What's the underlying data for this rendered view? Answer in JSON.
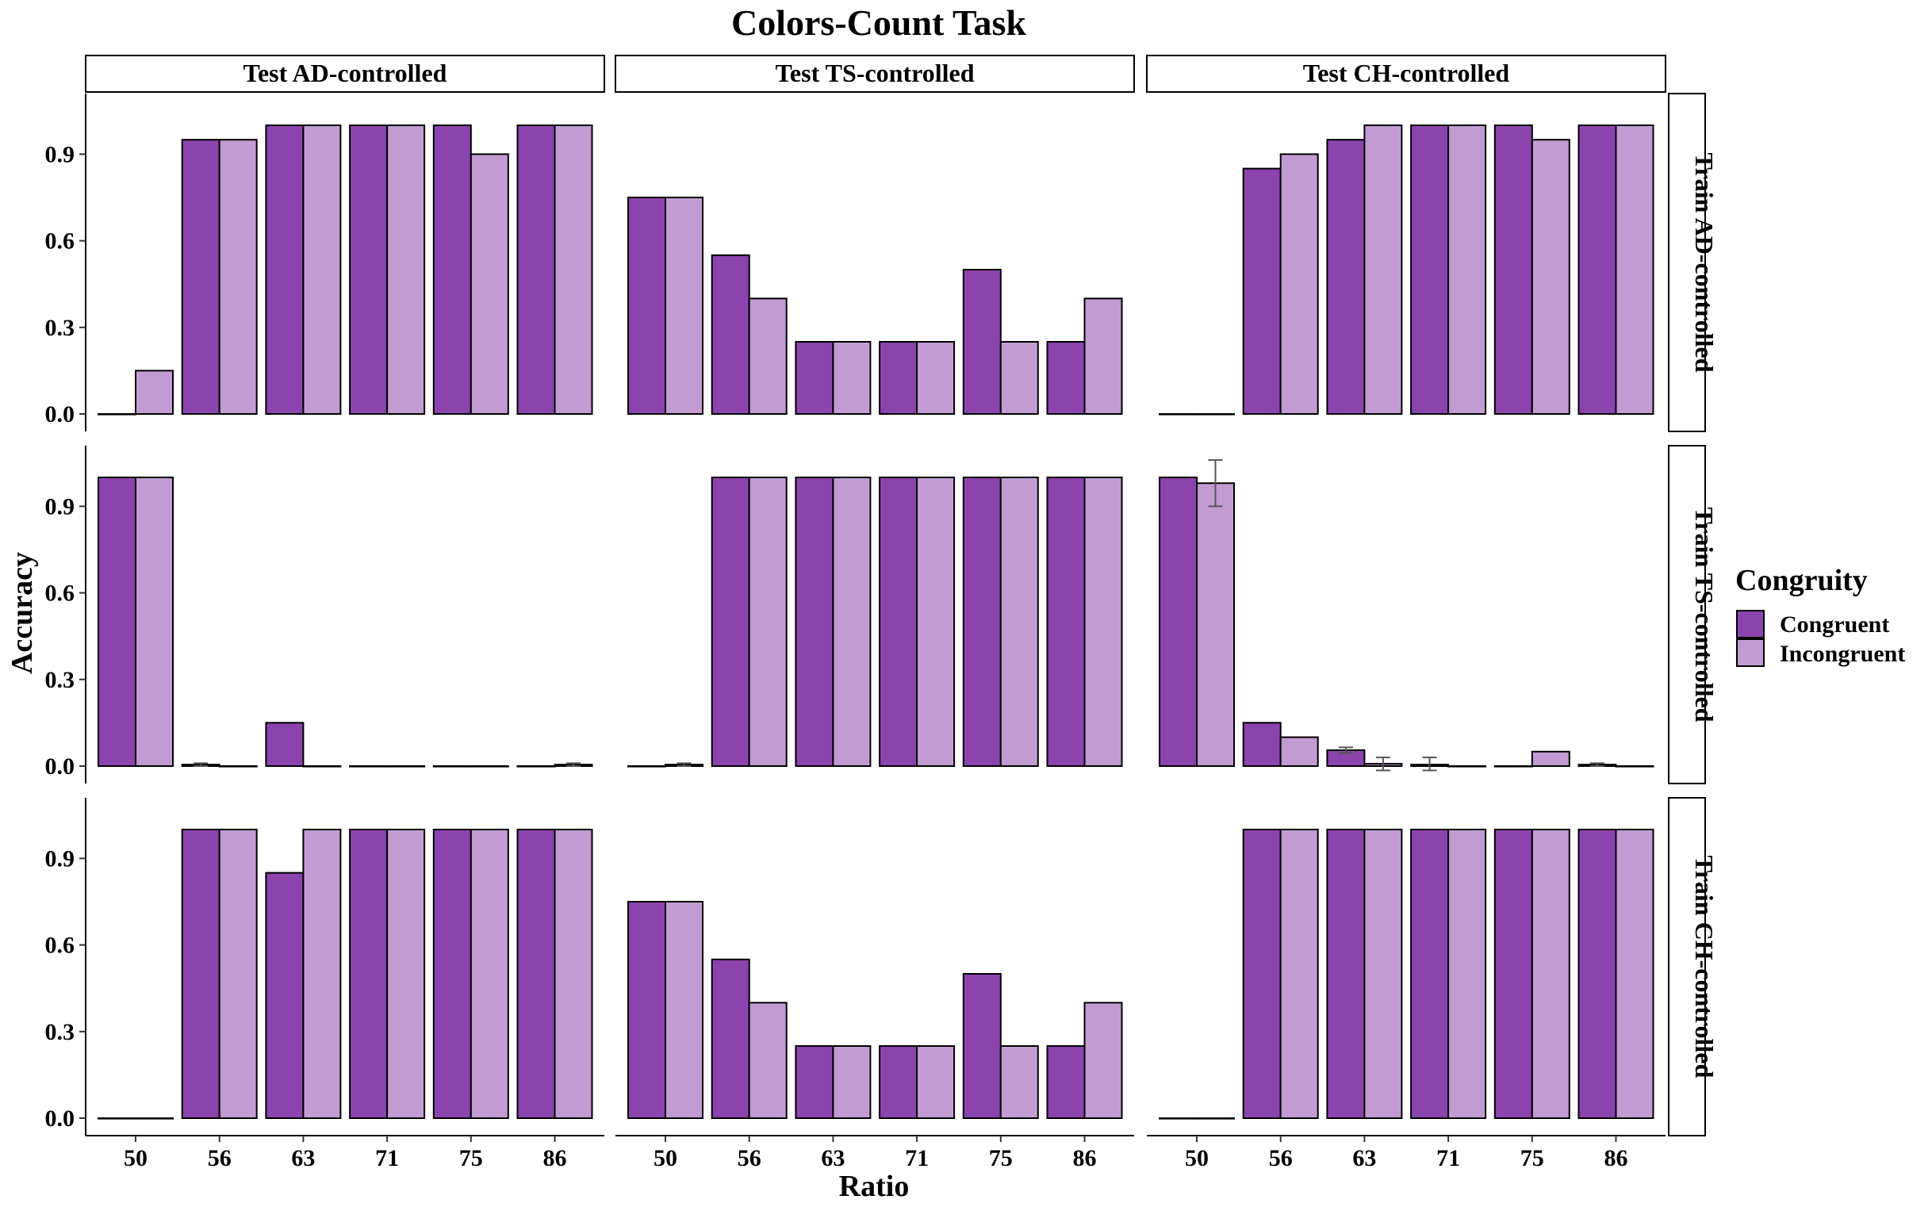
{
  "chart_data": {
    "type": "bar",
    "title": "Colors-Count Task",
    "xlabel": "Ratio",
    "ylabel": "Accuracy",
    "categories": [
      "50",
      "56",
      "63",
      "71",
      "75",
      "86"
    ],
    "ylim": [
      0,
      1.0
    ],
    "yticks": [
      "0.0",
      "0.3",
      "0.6",
      "0.9"
    ],
    "grid": false,
    "legend": {
      "title": "Congruity",
      "position": "right",
      "entries": [
        "Congruent",
        "Incongruent"
      ]
    },
    "colors": {
      "Congruent": "#8b44ad",
      "Incongruent": "#c39bd3"
    },
    "columns": [
      "Test AD-controlled",
      "Test TS-controlled",
      "Test CH-controlled"
    ],
    "rows": [
      "Train AD-controlled",
      "Train TS-controlled",
      "Train CH-controlled"
    ],
    "panels": [
      [
        {
          "series": [
            {
              "name": "Congruent",
              "values": [
                0.0,
                0.95,
                1.0,
                1.0,
                1.0,
                1.0
              ]
            },
            {
              "name": "Incongruent",
              "values": [
                0.15,
                0.95,
                1.0,
                1.0,
                0.9,
                1.0
              ]
            }
          ]
        },
        {
          "series": [
            {
              "name": "Congruent",
              "values": [
                0.75,
                0.55,
                0.25,
                0.25,
                0.5,
                0.25
              ]
            },
            {
              "name": "Incongruent",
              "values": [
                0.75,
                0.4,
                0.25,
                0.25,
                0.25,
                0.4
              ]
            }
          ]
        },
        {
          "series": [
            {
              "name": "Congruent",
              "values": [
                0.0,
                0.85,
                0.95,
                1.0,
                1.0,
                1.0
              ]
            },
            {
              "name": "Incongruent",
              "values": [
                0.0,
                0.9,
                1.0,
                1.0,
                0.95,
                1.0
              ]
            }
          ]
        }
      ],
      [
        {
          "series": [
            {
              "name": "Congruent",
              "values": [
                1.0,
                0.005,
                0.15,
                0.0,
                0.0,
                0.0
              ]
            },
            {
              "name": "Incongruent",
              "values": [
                1.0,
                0.0,
                0.0,
                0.0,
                0.0,
                0.005
              ]
            }
          ]
        },
        {
          "series": [
            {
              "name": "Congruent",
              "values": [
                0.0,
                1.0,
                1.0,
                1.0,
                1.0,
                1.0
              ]
            },
            {
              "name": "Incongruent",
              "values": [
                0.005,
                1.0,
                1.0,
                1.0,
                1.0,
                1.0
              ]
            }
          ]
        },
        {
          "series": [
            {
              "name": "Congruent",
              "values": [
                1.0,
                0.15,
                0.055,
                0.005,
                0.0,
                0.005
              ]
            },
            {
              "name": "Incongruent",
              "values": [
                0.98,
                0.1,
                0.008,
                0.0,
                0.05,
                0.0
              ]
            }
          ]
        }
      ],
      [
        {
          "series": [
            {
              "name": "Congruent",
              "values": [
                0.0,
                1.0,
                0.85,
                1.0,
                1.0,
                1.0
              ]
            },
            {
              "name": "Incongruent",
              "values": [
                0.0,
                1.0,
                1.0,
                1.0,
                1.0,
                1.0
              ]
            }
          ]
        },
        {
          "series": [
            {
              "name": "Congruent",
              "values": [
                0.75,
                0.55,
                0.25,
                0.25,
                0.5,
                0.25
              ]
            },
            {
              "name": "Incongruent",
              "values": [
                0.75,
                0.4,
                0.25,
                0.25,
                0.25,
                0.4
              ]
            }
          ]
        },
        {
          "series": [
            {
              "name": "Congruent",
              "values": [
                0.0,
                1.0,
                1.0,
                1.0,
                1.0,
                1.0
              ]
            },
            {
              "name": "Incongruent",
              "values": [
                0.0,
                1.0,
                1.0,
                1.0,
                1.0,
                1.0
              ]
            }
          ]
        }
      ]
    ],
    "error_bars": [
      {
        "row": 1,
        "col": 0,
        "series": "Congruent",
        "category": "56",
        "low": 0.0,
        "high": 0.01
      },
      {
        "row": 1,
        "col": 0,
        "series": "Incongruent",
        "category": "86",
        "low": 0.0,
        "high": 0.01
      },
      {
        "row": 1,
        "col": 1,
        "series": "Incongruent",
        "category": "50",
        "low": 0.0,
        "high": 0.01
      },
      {
        "row": 1,
        "col": 2,
        "series": "Incongruent",
        "category": "50",
        "low": 0.9,
        "high": 1.06
      },
      {
        "row": 1,
        "col": 2,
        "series": "Congruent",
        "category": "63",
        "low": 0.045,
        "high": 0.065
      },
      {
        "row": 1,
        "col": 2,
        "series": "Incongruent",
        "category": "63",
        "low": -0.015,
        "high": 0.03
      },
      {
        "row": 1,
        "col": 2,
        "series": "Congruent",
        "category": "71",
        "low": -0.015,
        "high": 0.03
      },
      {
        "row": 1,
        "col": 2,
        "series": "Congruent",
        "category": "86",
        "low": 0.0,
        "high": 0.01
      }
    ]
  }
}
